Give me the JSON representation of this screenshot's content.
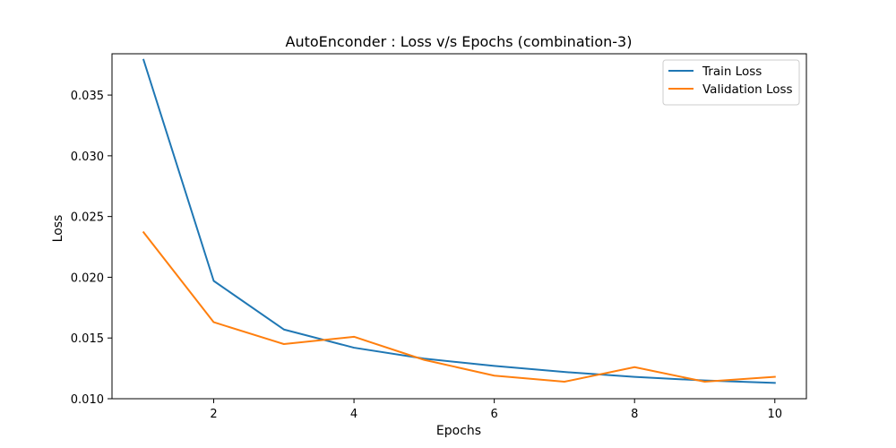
{
  "chart_data": {
    "type": "line",
    "title": "AutoEnconder : Loss v/s Epochs (combination-3)",
    "xlabel": "Epochs",
    "ylabel": "Loss",
    "x": [
      1,
      2,
      3,
      4,
      5,
      6,
      7,
      8,
      9,
      10
    ],
    "xlim": [
      0.55,
      10.45
    ],
    "ylim": [
      0.01,
      0.0384
    ],
    "xticks": [
      2,
      4,
      6,
      8,
      10
    ],
    "xtick_labels": [
      "2",
      "4",
      "6",
      "8",
      "10"
    ],
    "yticks": [
      0.01,
      0.015,
      0.02,
      0.025,
      0.03,
      0.035
    ],
    "ytick_labels": [
      "0.010",
      "0.015",
      "0.020",
      "0.025",
      "0.030",
      "0.035"
    ],
    "grid": false,
    "legend": "top-right",
    "series": [
      {
        "name": "Train Loss",
        "color": "#1f77b4",
        "values": [
          0.0379,
          0.0197,
          0.0157,
          0.0142,
          0.0133,
          0.0127,
          0.0122,
          0.0118,
          0.0115,
          0.0113
        ]
      },
      {
        "name": "Validation Loss",
        "color": "#ff7f0e",
        "values": [
          0.0237,
          0.0163,
          0.0145,
          0.0151,
          0.0132,
          0.0119,
          0.0114,
          0.0126,
          0.0114,
          0.0118
        ]
      }
    ]
  }
}
